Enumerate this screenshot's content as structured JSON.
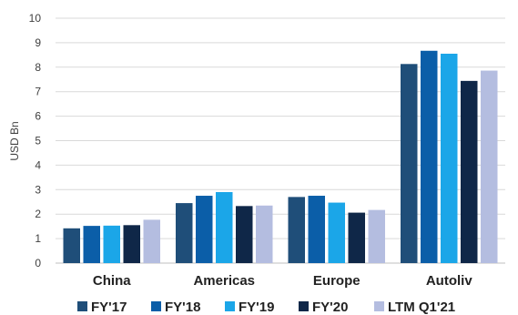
{
  "chart_data": {
    "type": "bar",
    "categories": [
      "China",
      "Americas",
      "Europe",
      "Autoliv"
    ],
    "series": [
      {
        "name": "FY'17",
        "color": "#1f4e79",
        "values": [
          1.42,
          2.45,
          2.7,
          8.13
        ]
      },
      {
        "name": "FY'18",
        "color": "#0b5ea8",
        "values": [
          1.52,
          2.75,
          2.75,
          8.67
        ]
      },
      {
        "name": "FY'19",
        "color": "#1ba6e8",
        "values": [
          1.53,
          2.9,
          2.47,
          8.55
        ]
      },
      {
        "name": "FY'20",
        "color": "#0f2748",
        "values": [
          1.55,
          2.33,
          2.06,
          7.44
        ]
      },
      {
        "name": "LTM Q1'21",
        "color": "#b4bde0",
        "values": [
          1.77,
          2.35,
          2.17,
          7.86
        ]
      }
    ],
    "ylabel": "USD Bn",
    "ylim": [
      0,
      10
    ],
    "yticks": [
      "0",
      "1",
      "2",
      "3",
      "4",
      "5",
      "6",
      "7",
      "8",
      "9",
      "10"
    ],
    "grid": true,
    "legend": "bottom"
  }
}
